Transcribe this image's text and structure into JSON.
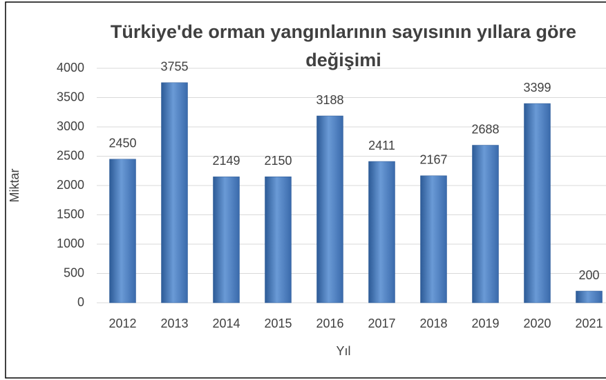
{
  "chart_data": {
    "type": "bar",
    "title": "Türkiye'de orman yangınlarının sayısının yıllara göre değişimi",
    "x_label": "Yıl",
    "y_label": "Miktar",
    "categories": [
      "2012",
      "2013",
      "2014",
      "2015",
      "2016",
      "2017",
      "2018",
      "2019",
      "2020",
      "2021"
    ],
    "values": [
      2450,
      3755,
      2149,
      2150,
      3188,
      2411,
      2167,
      2688,
      3399,
      200
    ],
    "color": "#4f81bd",
    "ylim": [
      0,
      4000
    ],
    "yticks": [
      0,
      500,
      1000,
      1500,
      2000,
      2500,
      3000,
      3500,
      4000
    ],
    "grid": true
  }
}
